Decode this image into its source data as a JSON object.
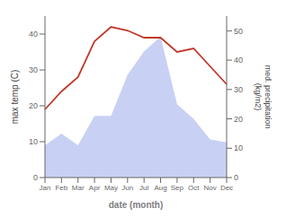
{
  "chart_data": {
    "type": "combo",
    "categories": [
      "Jan",
      "Feb",
      "Mar",
      "Apr",
      "May",
      "Jun",
      "Jul",
      "Aug",
      "Sep",
      "Oct",
      "Nov",
      "Dec"
    ],
    "xlabel": "date (month)",
    "ylabel": "max temp (C)",
    "y2label": "med. precipitation\n(kg/m2)",
    "ylim": [
      0,
      45
    ],
    "yticks": [
      0,
      10,
      20,
      30,
      40
    ],
    "y2lim": [
      0,
      55
    ],
    "y2ticks": [
      0,
      10,
      20,
      30,
      40,
      50
    ],
    "grid": false,
    "series": [
      {
        "type": "area",
        "axis": "y2",
        "color": "#b0bef0",
        "values": [
          11,
          15,
          11,
          21,
          21,
          35,
          43,
          48,
          25,
          20,
          13,
          12
        ]
      },
      {
        "type": "line",
        "axis": "y",
        "color": "#c0392b",
        "values": [
          19,
          24,
          28,
          38,
          42,
          41,
          39,
          39,
          35,
          36,
          31,
          26
        ]
      }
    ]
  }
}
